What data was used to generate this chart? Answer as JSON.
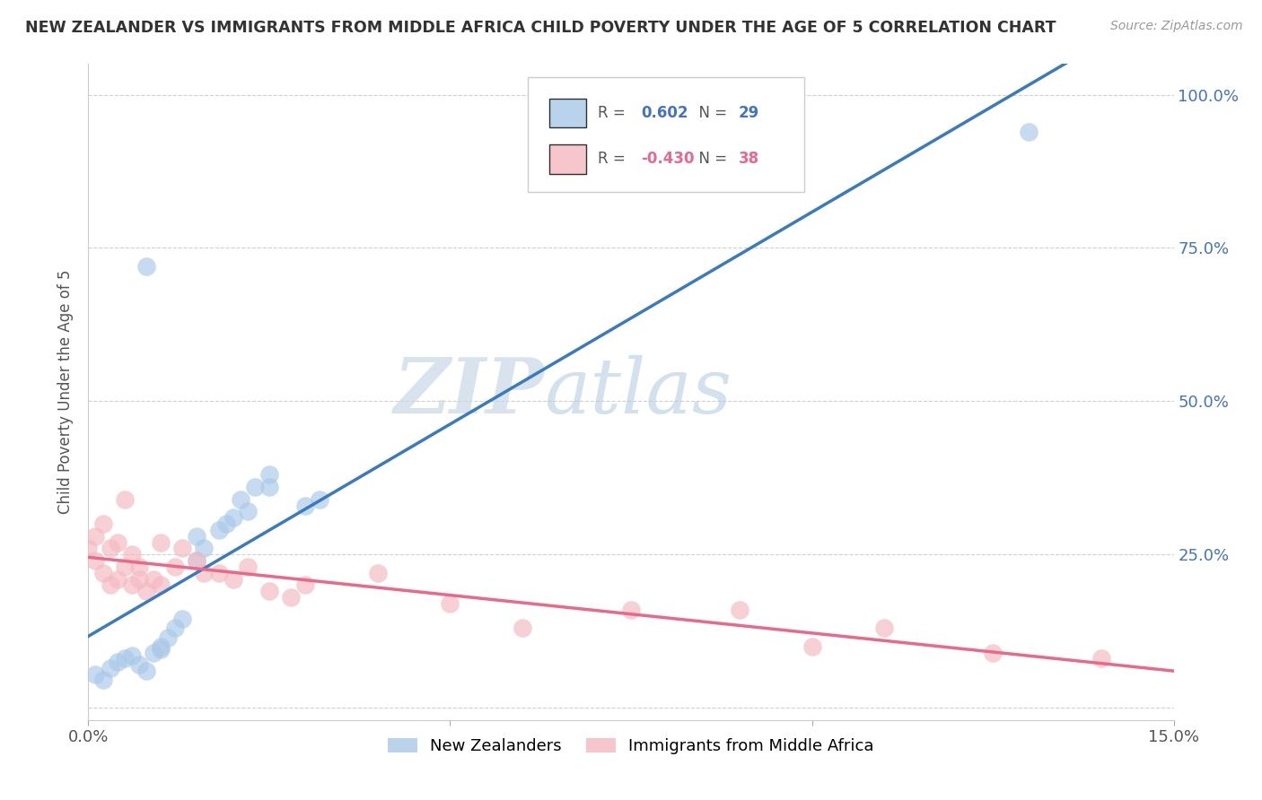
{
  "title": "NEW ZEALANDER VS IMMIGRANTS FROM MIDDLE AFRICA CHILD POVERTY UNDER THE AGE OF 5 CORRELATION CHART",
  "source": "Source: ZipAtlas.com",
  "ylabel": "Child Poverty Under the Age of 5",
  "watermark_zip": "ZIP",
  "watermark_atlas": "atlas",
  "xlim": [
    0.0,
    0.15
  ],
  "ylim": [
    -0.02,
    1.05
  ],
  "blue_R": 0.602,
  "blue_N": 29,
  "pink_R": -0.43,
  "pink_N": 38,
  "blue_color": "#a8c8e8",
  "pink_color": "#f4b8c0",
  "blue_line_color": "#3a7abf",
  "pink_line_color": "#e8698a",
  "legend_label_blue": "New Zealanders",
  "legend_label_pink": "Immigrants from Middle Africa",
  "blue_x": [
    0.001,
    0.002,
    0.003,
    0.004,
    0.005,
    0.006,
    0.007,
    0.008,
    0.009,
    0.01,
    0.01,
    0.011,
    0.012,
    0.013,
    0.015,
    0.02,
    0.022,
    0.025,
    0.015,
    0.016,
    0.018,
    0.019,
    0.021,
    0.023,
    0.025,
    0.03,
    0.032,
    0.008,
    0.13
  ],
  "blue_y": [
    0.055,
    0.045,
    0.065,
    0.075,
    0.08,
    0.085,
    0.07,
    0.06,
    0.09,
    0.095,
    0.1,
    0.115,
    0.13,
    0.145,
    0.28,
    0.31,
    0.32,
    0.36,
    0.24,
    0.26,
    0.29,
    0.3,
    0.34,
    0.36,
    0.38,
    0.33,
    0.34,
    0.72,
    0.94
  ],
  "pink_x": [
    0.0,
    0.001,
    0.001,
    0.002,
    0.002,
    0.003,
    0.003,
    0.004,
    0.004,
    0.005,
    0.005,
    0.006,
    0.006,
    0.007,
    0.007,
    0.008,
    0.009,
    0.01,
    0.01,
    0.012,
    0.013,
    0.015,
    0.016,
    0.018,
    0.02,
    0.022,
    0.025,
    0.028,
    0.03,
    0.04,
    0.05,
    0.06,
    0.075,
    0.09,
    0.1,
    0.11,
    0.125,
    0.14
  ],
  "pink_y": [
    0.26,
    0.24,
    0.28,
    0.22,
    0.3,
    0.2,
    0.26,
    0.21,
    0.27,
    0.23,
    0.34,
    0.2,
    0.25,
    0.21,
    0.23,
    0.19,
    0.21,
    0.2,
    0.27,
    0.23,
    0.26,
    0.24,
    0.22,
    0.22,
    0.21,
    0.23,
    0.19,
    0.18,
    0.2,
    0.22,
    0.17,
    0.13,
    0.16,
    0.16,
    0.1,
    0.13,
    0.09,
    0.08
  ],
  "background_color": "#ffffff",
  "grid_color": "#d0d0d0"
}
